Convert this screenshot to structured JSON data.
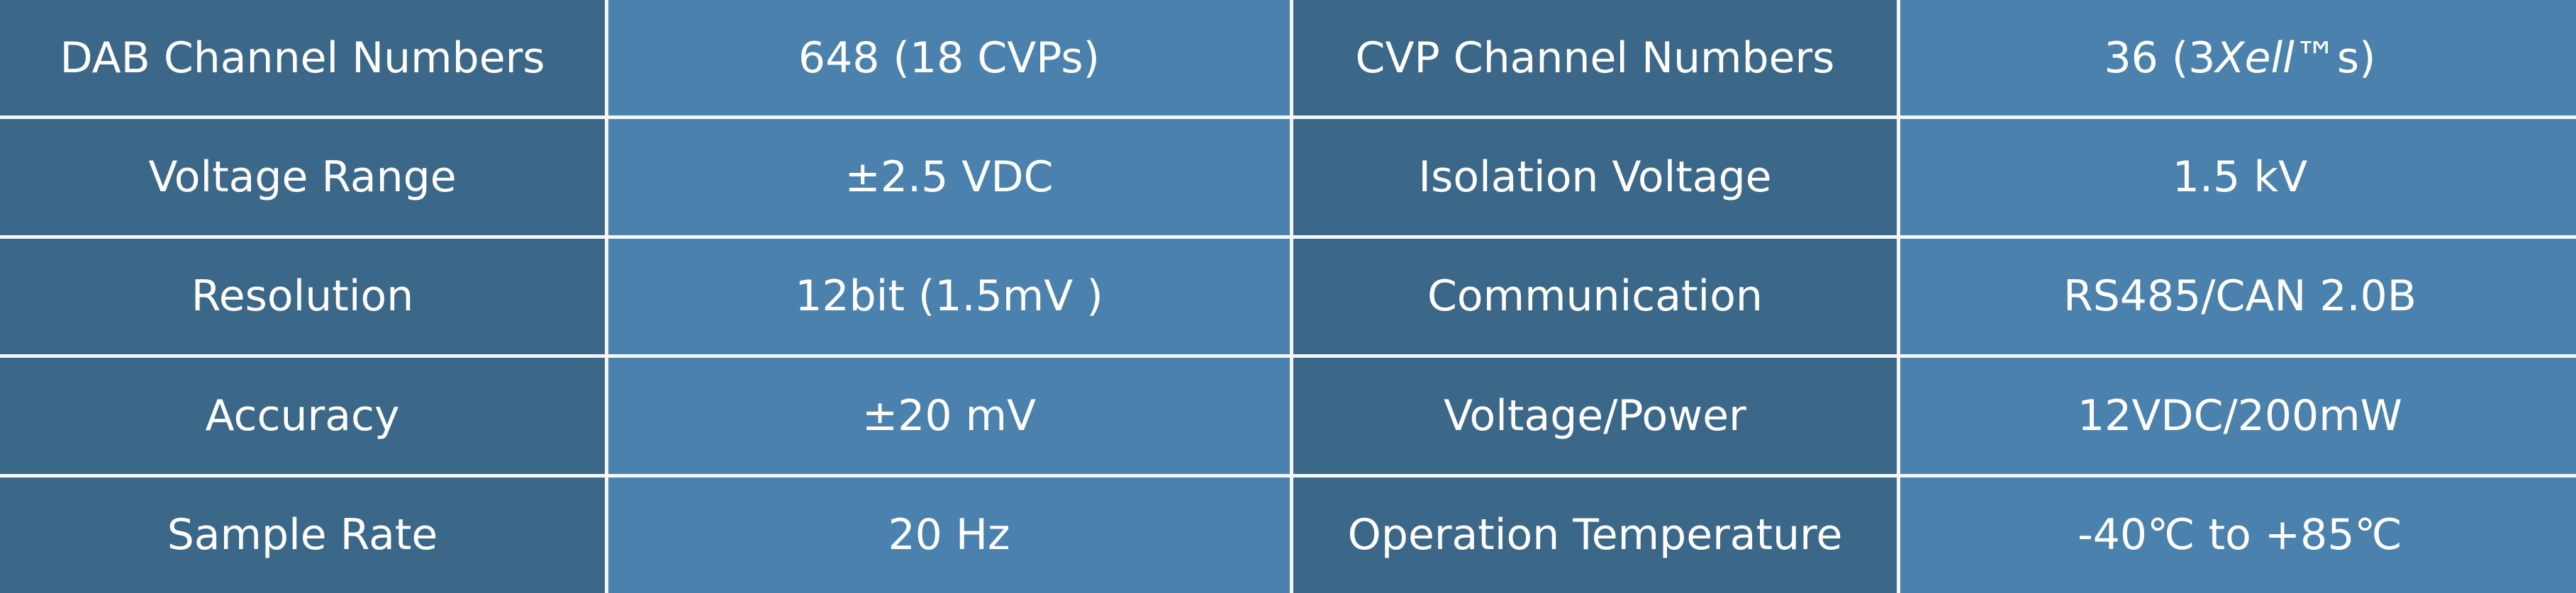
{
  "table": {
    "rows": [
      [
        "DAB Channel Numbers",
        "648 (18 CVPs)",
        "CVP Channel Numbers",
        {
          "parts": [
            "36 (3",
            "Xell",
            "™s)"
          ]
        }
      ],
      [
        "Voltage Range",
        "±2.5 VDC",
        "Isolation Voltage",
        "1.5 kV"
      ],
      [
        "Resolution",
        "12bit (1.5mV )",
        "Communication",
        "RS485/CAN 2.0B"
      ],
      [
        "Accuracy",
        "±20 mV",
        "Voltage/Power",
        "12VDC/200mW"
      ],
      [
        "Sample Rate",
        "20 Hz",
        "Operation Temperature",
        "-40℃ to +85℃"
      ]
    ]
  }
}
